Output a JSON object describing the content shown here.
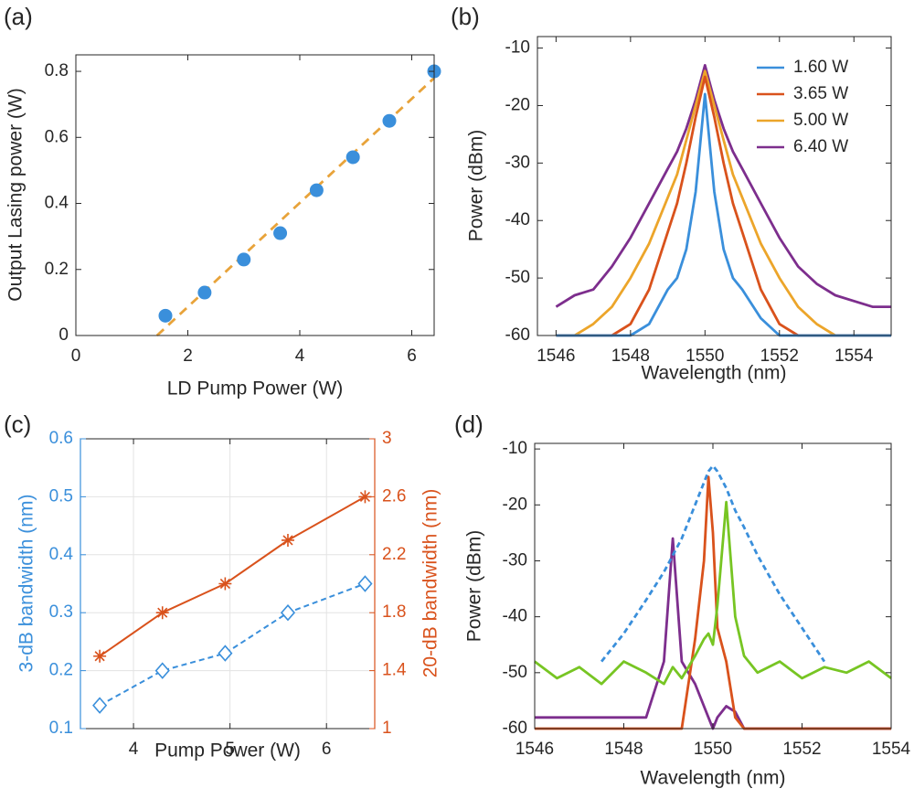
{
  "chart_data": [
    {
      "type": "scatter",
      "panel_label": "(a)",
      "xlabel": "LD Pump Power (W)",
      "ylabel": "Output Lasing power (W)",
      "xlim": [
        0,
        6.4
      ],
      "ylim": [
        0,
        0.85
      ],
      "xticks": [
        0,
        2,
        4,
        6
      ],
      "yticks": [
        0,
        0.2,
        0.4,
        0.6,
        0.8
      ],
      "grid": false,
      "series": [
        {
          "color": "#3a8fdb",
          "marker": "circle",
          "line": false,
          "x": [
            1.6,
            2.3,
            3.0,
            3.65,
            4.3,
            4.95,
            5.6,
            6.4
          ],
          "values": [
            0.06,
            0.13,
            0.23,
            0.31,
            0.44,
            0.54,
            0.65,
            0.8
          ]
        },
        {
          "color": "#e8a33a",
          "line": true,
          "dash": true,
          "x": [
            1.45,
            6.4
          ],
          "values": [
            0,
            0.78
          ]
        }
      ]
    },
    {
      "type": "line",
      "panel_label": "(b)",
      "xlabel": "Wavelength (nm)",
      "ylabel": "Power (dBm)",
      "xlim": [
        1545.5,
        1555
      ],
      "ylim": [
        -60,
        -8
      ],
      "xticks": [
        1546,
        1548,
        1550,
        1552,
        1554
      ],
      "yticks": [
        -60,
        -50,
        -40,
        -30,
        -20,
        -10
      ],
      "grid": false,
      "legend": "upper right",
      "x": [
        1546,
        1546.5,
        1547,
        1547.5,
        1548,
        1548.5,
        1549,
        1549.25,
        1549.5,
        1549.75,
        1550,
        1550.25,
        1550.5,
        1550.75,
        1551,
        1551.5,
        1552,
        1552.5,
        1553,
        1553.5,
        1554,
        1554.5,
        1555
      ],
      "series": [
        {
          "name": "1.60 W",
          "color": "#3a8fdb",
          "values": [
            -60,
            -60,
            -60,
            -60,
            -60,
            -58,
            -52,
            -50,
            -45,
            -35,
            -18,
            -35,
            -45,
            -50,
            -52,
            -57,
            -60,
            -60,
            -60,
            -60,
            -60,
            -60,
            -60
          ]
        },
        {
          "name": "3.65 W",
          "color": "#d9521c",
          "values": [
            -60,
            -60,
            -60,
            -60,
            -58,
            -52,
            -42,
            -37,
            -30,
            -22,
            -15,
            -22,
            -30,
            -37,
            -42,
            -52,
            -58,
            -60,
            -60,
            -60,
            -60,
            -60,
            -60
          ]
        },
        {
          "name": "5.00 W",
          "color": "#eca52a",
          "values": [
            -60,
            -60,
            -58,
            -55,
            -50,
            -44,
            -36,
            -32,
            -26,
            -20,
            -14,
            -20,
            -26,
            -32,
            -36,
            -44,
            -50,
            -55,
            -58,
            -60,
            -60,
            -60,
            -60
          ]
        },
        {
          "name": "6.40 W",
          "color": "#7d2e8d",
          "values": [
            -55,
            -53,
            -52,
            -48,
            -43,
            -37,
            -31,
            -28,
            -24,
            -19,
            -13,
            -19,
            -24,
            -28,
            -31,
            -37,
            -43,
            -48,
            -51,
            -53,
            -54,
            -55,
            -55
          ]
        }
      ]
    },
    {
      "type": "line",
      "panel_label": "(c)",
      "xlabel": "Pump Power (W)",
      "ylabel": "3-dB bandwidth (nm)",
      "y2label": "20-dB bandwidth (nm)",
      "ycolor": "#3a8fdb",
      "y2color": "#d9521c",
      "xlim": [
        3.45,
        6.5
      ],
      "ylim": [
        0.1,
        0.6
      ],
      "y2lim": [
        1,
        3
      ],
      "xticks": [
        4,
        5,
        6
      ],
      "yticks": [
        0.1,
        0.2,
        0.3,
        0.4,
        0.5,
        0.6
      ],
      "y2ticks": [
        1,
        1.4,
        1.8,
        2.2,
        2.6,
        3
      ],
      "grid": true,
      "x": [
        3.65,
        4.3,
        4.95,
        5.6,
        6.4
      ],
      "series": [
        {
          "color": "#3a8fdb",
          "marker": "diamond",
          "dash": true,
          "values": [
            0.14,
            0.2,
            0.23,
            0.3,
            0.35
          ]
        },
        {
          "color": "#d9521c",
          "marker": "star",
          "axis": "y2",
          "values": [
            1.5,
            1.8,
            2.0,
            2.3,
            2.6
          ]
        }
      ]
    },
    {
      "type": "line",
      "panel_label": "(d)",
      "xlabel": "Wavelength (nm)",
      "ylabel": "Power (dBm)",
      "xlim": [
        1546,
        1554
      ],
      "ylim": [
        -60,
        -9
      ],
      "xticks": [
        1546,
        1548,
        1550,
        1552,
        1554
      ],
      "yticks": [
        -60,
        -50,
        -40,
        -30,
        -20,
        -10
      ],
      "grid": false,
      "x": [
        1546,
        1546.5,
        1547,
        1547.5,
        1548,
        1548.5,
        1548.9,
        1549.1,
        1549.3,
        1549.6,
        1549.8,
        1549.9,
        1550,
        1550.1,
        1550.3,
        1550.5,
        1550.7,
        1551,
        1551.5,
        1552,
        1552.5,
        1553,
        1553.5,
        1554
      ],
      "series": [
        {
          "color": "#3a8fdb",
          "dash": true,
          "values": [
            null,
            null,
            null,
            -48,
            -43,
            -37,
            -32,
            -29,
            -26,
            -20,
            -16,
            -14,
            -13,
            -14,
            -17,
            -21,
            -24,
            -29,
            -36,
            -42,
            -48,
            null,
            null,
            null
          ]
        },
        {
          "color": "#77c523",
          "values": [
            -48,
            -51,
            -49,
            -52,
            -48,
            -50,
            -52,
            -49,
            -51,
            -47,
            -44,
            -43,
            -45,
            -38,
            -19.5,
            -40,
            -47,
            -50,
            -48,
            -51,
            -49,
            -50,
            -48,
            -51
          ]
        },
        {
          "color": "#d9521c",
          "values": [
            -60,
            -60,
            -60,
            -60,
            -60,
            -60,
            -60,
            -60,
            -60,
            -44,
            -30,
            -15,
            -25,
            -42,
            -48,
            -58,
            -60,
            -60,
            -60,
            -60,
            -60,
            -60,
            -60,
            -60
          ]
        },
        {
          "color": "#7d2e8d",
          "values": [
            -58,
            -58,
            -58,
            -58,
            -58,
            -58,
            -48,
            -26,
            -48,
            -52,
            -56,
            -58,
            -60,
            -58,
            -56,
            -57,
            -60,
            -60,
            -60,
            -60,
            -60,
            -60,
            -60,
            -60
          ]
        }
      ]
    }
  ]
}
